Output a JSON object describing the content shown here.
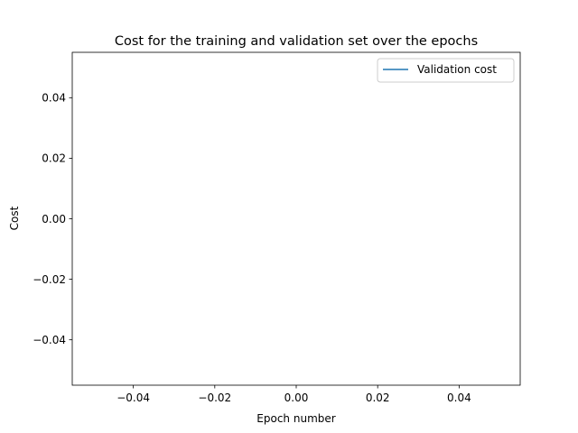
{
  "chart_data": {
    "type": "line",
    "title": "Cost for the training and validation set over the epochs",
    "xlabel": "Epoch number",
    "ylabel": "Cost",
    "xlim": [
      -0.055,
      0.055
    ],
    "ylim": [
      -0.055,
      0.055
    ],
    "xticks": [
      {
        "value": -0.04,
        "label": "−0.04"
      },
      {
        "value": -0.02,
        "label": "−0.02"
      },
      {
        "value": 0.0,
        "label": "0.00"
      },
      {
        "value": 0.02,
        "label": "0.02"
      },
      {
        "value": 0.04,
        "label": "0.04"
      }
    ],
    "yticks": [
      {
        "value": -0.04,
        "label": "−0.04"
      },
      {
        "value": -0.02,
        "label": "−0.02"
      },
      {
        "value": 0.0,
        "label": "0.00"
      },
      {
        "value": 0.02,
        "label": "0.02"
      },
      {
        "value": 0.04,
        "label": "0.04"
      }
    ],
    "grid": false,
    "legend_position": "top-right",
    "series": [
      {
        "name": "Validation cost",
        "color": "#1f77b4",
        "x": [],
        "y": []
      }
    ]
  }
}
